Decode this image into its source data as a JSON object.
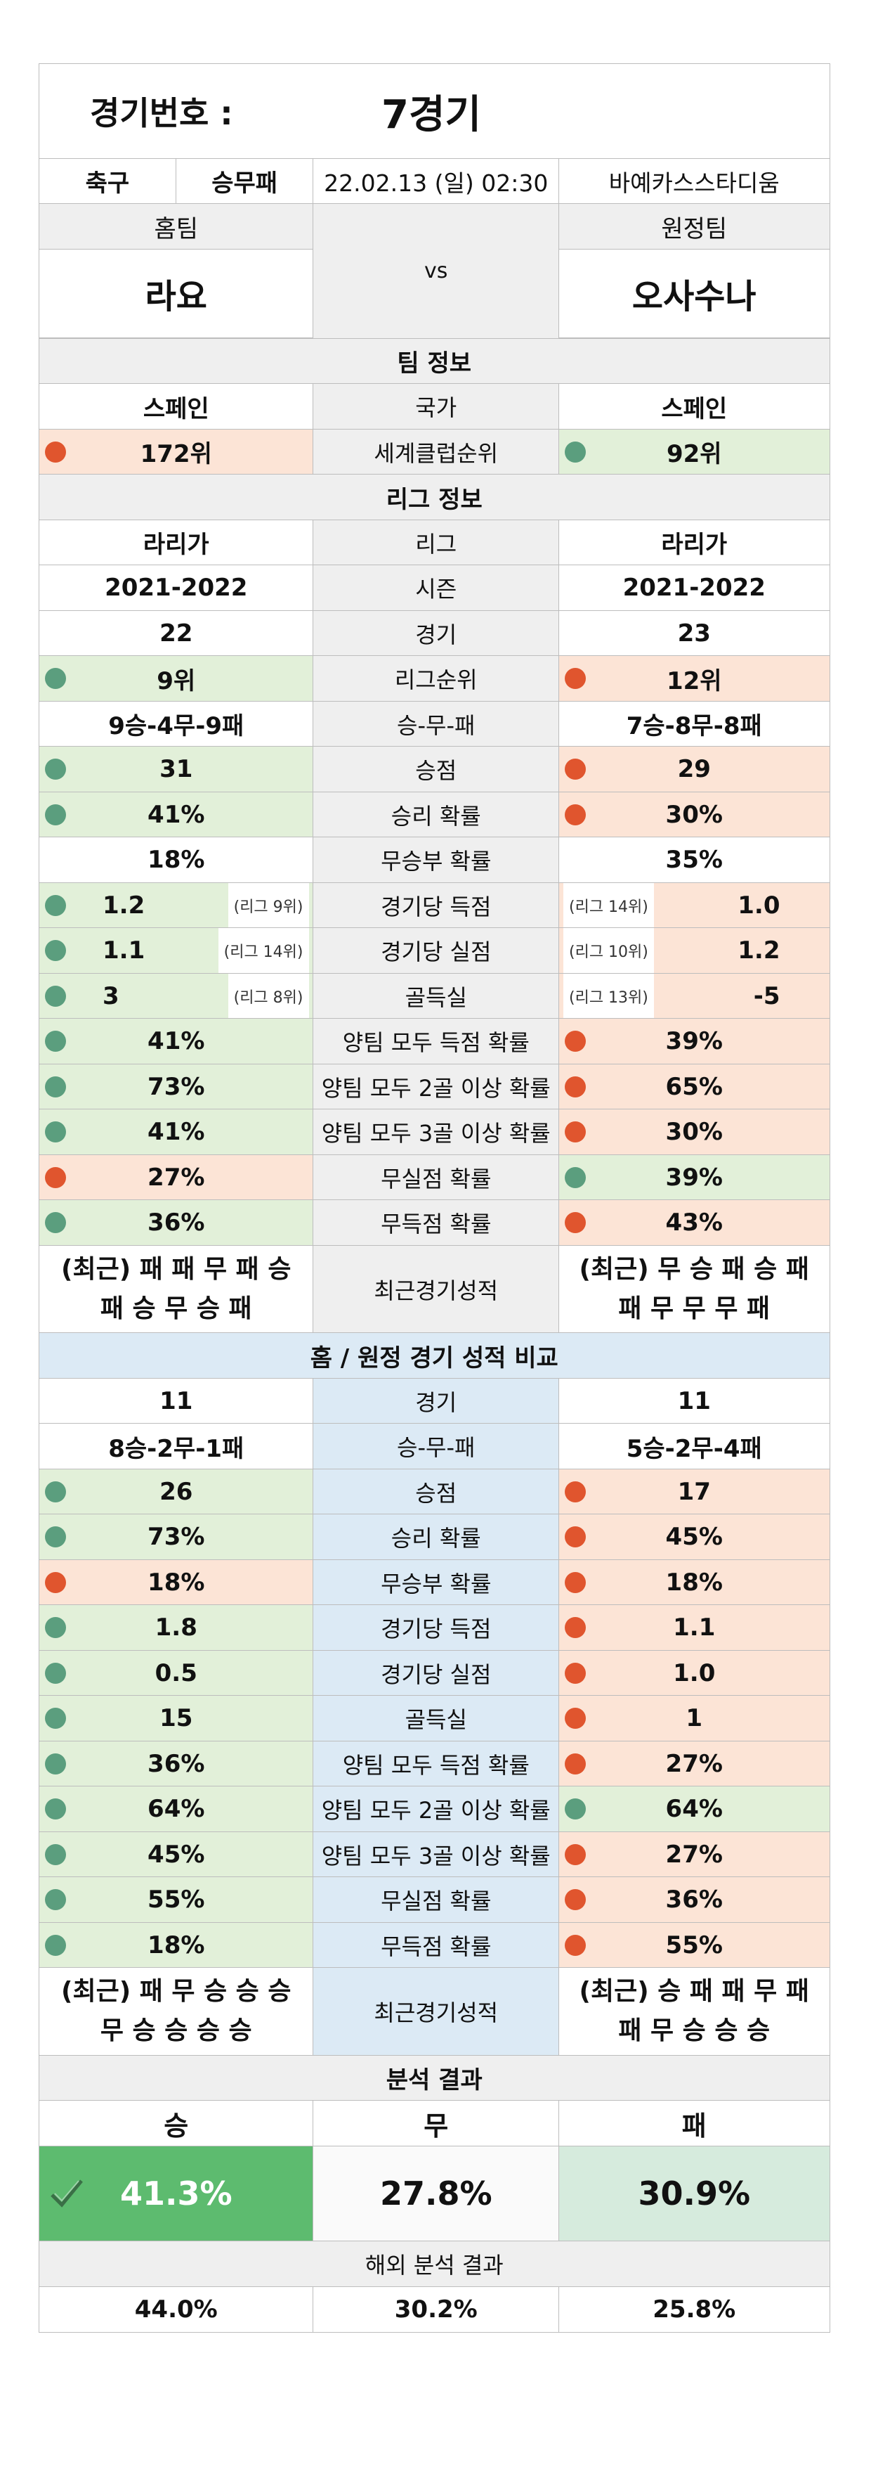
{
  "header": {
    "label": "경기번호 :",
    "match": "7경기"
  },
  "info": {
    "sport": "축구",
    "type": "승무패",
    "datetime": "22.02.13 (일) 02:30",
    "venue": "바예카스스타디움"
  },
  "teams": {
    "home_label": "홈팀",
    "away_label": "원정팀",
    "vs": "vs",
    "home": "라요",
    "away": "오사수나"
  },
  "team_info": {
    "title": "팀 정보",
    "rows": [
      {
        "home": "스페인",
        "label": "국가",
        "away": "스페인"
      },
      {
        "home": "172위",
        "label": "세계클럽순위",
        "away": "92위"
      }
    ]
  },
  "league_info": {
    "title": "리그 정보",
    "rows": [
      {
        "home": "라리가",
        "label": "리그",
        "away": "라리가"
      },
      {
        "home": "2021-2022",
        "label": "시즌",
        "away": "2021-2022"
      },
      {
        "home": "22",
        "label": "경기",
        "away": "23"
      },
      {
        "home": "9위",
        "label": "리그순위",
        "away": "12위"
      },
      {
        "home": "9승-4무-9패",
        "label": "승-무-패",
        "away": "7승-8무-8패"
      },
      {
        "home": "31",
        "label": "승점",
        "away": "29"
      },
      {
        "home": "41%",
        "label": "승리 확률",
        "away": "30%"
      },
      {
        "home": "18%",
        "label": "무승부 확률",
        "away": "35%"
      },
      {
        "home": "1.2",
        "home_rank": "(리그 9위)",
        "label": "경기당 득점",
        "away_rank": "(리그 14위)",
        "away": "1.0"
      },
      {
        "home": "1.1",
        "home_rank": "(리그 14위)",
        "label": "경기당 실점",
        "away_rank": "(리그 10위)",
        "away": "1.2"
      },
      {
        "home": "3",
        "home_rank": "(리그 8위)",
        "label": "골득실",
        "away_rank": "(리그 13위)",
        "away": "-5"
      },
      {
        "home": "41%",
        "label": "양팀 모두 득점 확률",
        "away": "39%"
      },
      {
        "home": "73%",
        "label": "양팀 모두 2골 이상 확률",
        "away": "65%"
      },
      {
        "home": "41%",
        "label": "양팀 모두 3골 이상 확률",
        "away": "30%"
      },
      {
        "home": "27%",
        "label": "무실점 확률",
        "away": "39%"
      },
      {
        "home": "36%",
        "label": "무득점 확률",
        "away": "43%"
      }
    ],
    "recent": {
      "home_1": "(최근) 패 패 무 패 승",
      "home_2": "패 승 무 승 패",
      "label": "최근경기성적",
      "away_1": "(최근) 무 승 패 승 패",
      "away_2": "패 무 무 무 패"
    }
  },
  "home_away": {
    "title": "홈 / 원정 경기 성적 비교",
    "rows": [
      {
        "home": "11",
        "label": "경기",
        "away": "11"
      },
      {
        "home": "8승-2무-1패",
        "label": "승-무-패",
        "away": "5승-2무-4패"
      },
      {
        "home": "26",
        "label": "승점",
        "away": "17"
      },
      {
        "home": "73%",
        "label": "승리 확률",
        "away": "45%"
      },
      {
        "home": "18%",
        "label": "무승부 확률",
        "away": "18%"
      },
      {
        "home": "1.8",
        "label": "경기당 득점",
        "away": "1.1"
      },
      {
        "home": "0.5",
        "label": "경기당 실점",
        "away": "1.0"
      },
      {
        "home": "15",
        "label": "골득실",
        "away": "1"
      },
      {
        "home": "36%",
        "label": "양팀 모두 득점 확률",
        "away": "27%"
      },
      {
        "home": "64%",
        "label": "양팀 모두 2골 이상 확률",
        "away": "64%"
      },
      {
        "home": "45%",
        "label": "양팀 모두 3골 이상 확률",
        "away": "27%"
      },
      {
        "home": "55%",
        "label": "무실점 확률",
        "away": "36%"
      },
      {
        "home": "18%",
        "label": "무득점 확률",
        "away": "55%"
      }
    ],
    "recent": {
      "home_1": "(최근) 패 무 승 승 승",
      "home_2": "무 승 승 승 승",
      "label": "최근경기성적",
      "away_1": "(최근) 승 패 패 무 패",
      "away_2": "패 무 승 승 승"
    }
  },
  "analysis": {
    "title": "분석 결과",
    "win_label": "승",
    "draw_label": "무",
    "loss_label": "패",
    "win": "41.3%",
    "draw": "27.8%",
    "loss": "30.9%",
    "overseas_title": "해외 분석 결과",
    "overseas_win": "44.0%",
    "overseas_draw": "30.2%",
    "overseas_loss": "25.8%"
  },
  "colors": {
    "green_fill": "#e2f0d9",
    "orange_fill": "#fce4d6",
    "green_dot": "#5b9e7e",
    "red_dot": "#e0552e",
    "win_box": "#5dbb6f",
    "section_blue": "#dceaf5"
  }
}
